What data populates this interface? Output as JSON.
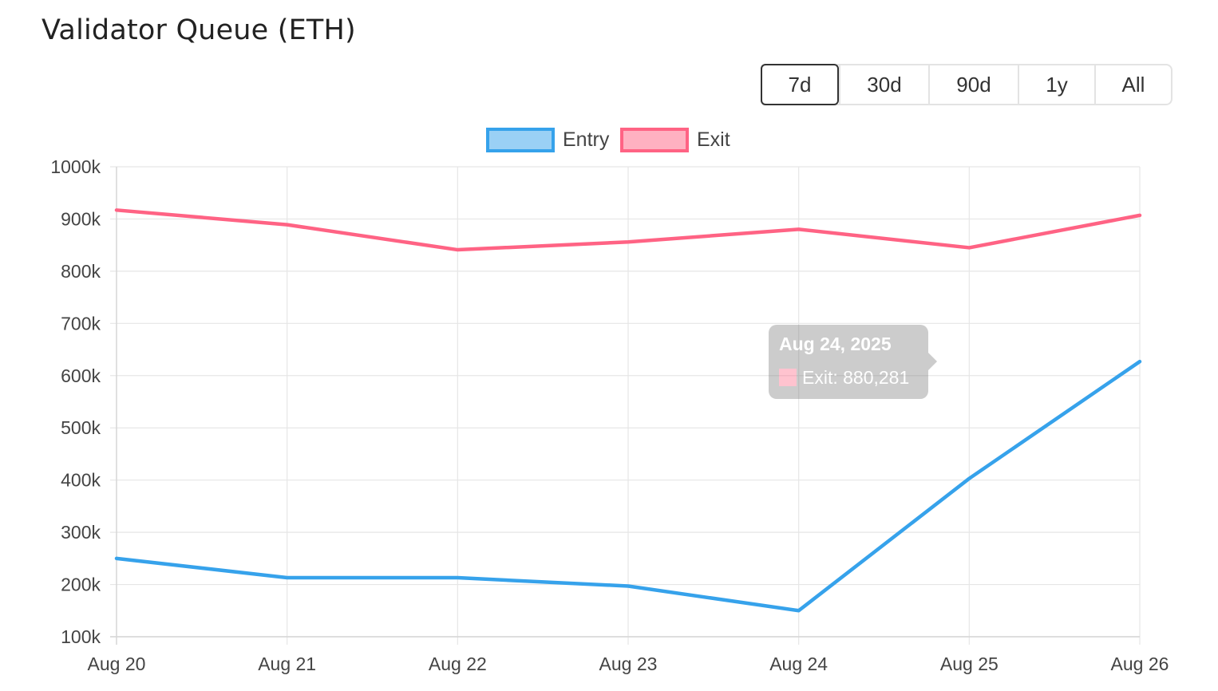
{
  "page": {
    "title": "Validator Queue (ETH)"
  },
  "range_buttons": [
    {
      "label": "7d",
      "active": true
    },
    {
      "label": "30d",
      "active": false
    },
    {
      "label": "90d",
      "active": false
    },
    {
      "label": "1y",
      "active": false
    },
    {
      "label": "All",
      "active": false
    }
  ],
  "tooltip": {
    "date": "Aug 24, 2025",
    "line": "Exit: 880,281",
    "swatch_color": "#ff6384"
  },
  "chart_data": {
    "type": "line",
    "title": "Validator Queue (ETH)",
    "categories": [
      "Aug 20",
      "Aug 21",
      "Aug 22",
      "Aug 23",
      "Aug 24",
      "Aug 25",
      "Aug 26"
    ],
    "series": [
      {
        "name": "Entry",
        "color": "#36a2eb",
        "fill_color": "#9ad0f5",
        "values": [
          250000,
          213000,
          213000,
          197000,
          150000,
          403000,
          627000
        ]
      },
      {
        "name": "Exit",
        "color": "#ff6384",
        "fill_color": "#ffb1c1",
        "values": [
          917000,
          889000,
          841000,
          856000,
          880281,
          845000,
          907000
        ]
      }
    ],
    "ylim": [
      100000,
      1000000
    ],
    "yticks": [
      {
        "value": 1000000,
        "label": "1000k"
      },
      {
        "value": 900000,
        "label": "900k"
      },
      {
        "value": 800000,
        "label": "800k"
      },
      {
        "value": 700000,
        "label": "700k"
      },
      {
        "value": 600000,
        "label": "600k"
      },
      {
        "value": 500000,
        "label": "500k"
      },
      {
        "value": 400000,
        "label": "400k"
      },
      {
        "value": 300000,
        "label": "300k"
      },
      {
        "value": 200000,
        "label": "200k"
      },
      {
        "value": 100000,
        "label": "100k"
      }
    ],
    "xlabel": "",
    "ylabel": "",
    "grid": true,
    "legend": "top-center"
  }
}
